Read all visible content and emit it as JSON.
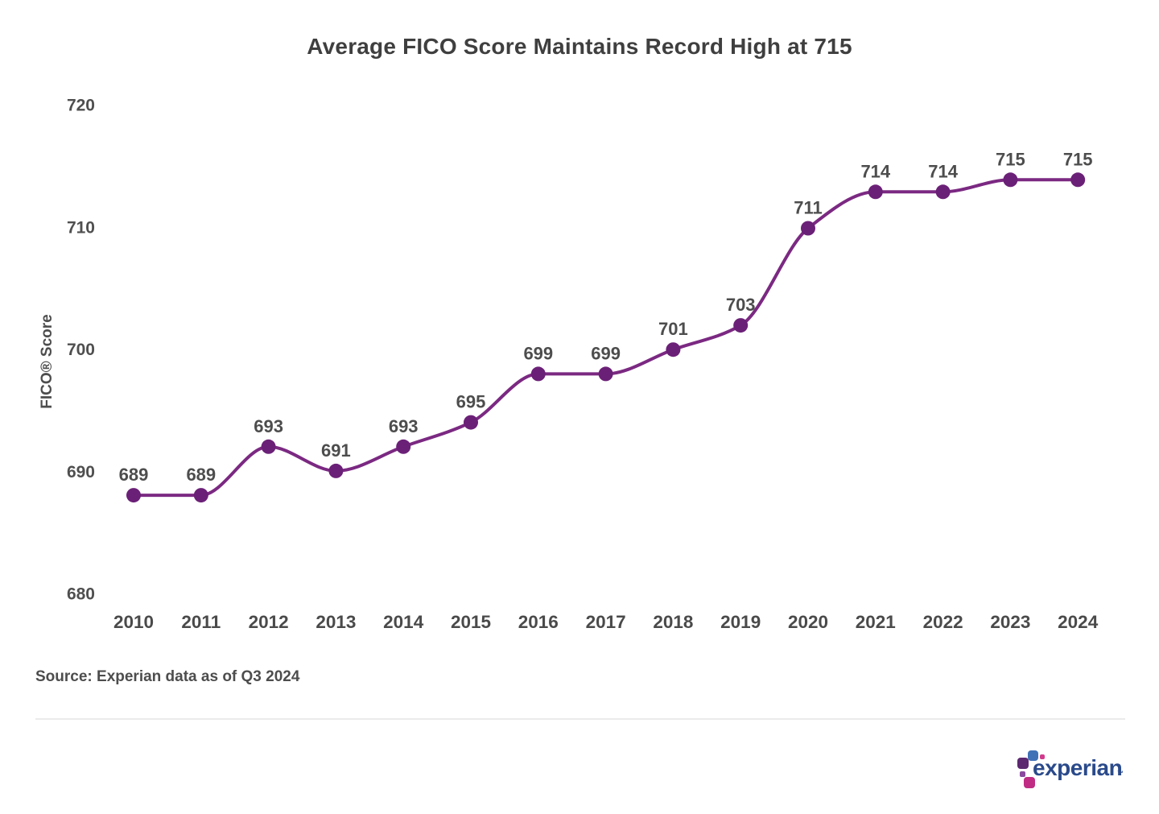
{
  "chart": {
    "title": "Average FICO Score Maintains Record High at 715",
    "source_note": "Source: Experian data as of Q3 2024"
  },
  "chart_data": {
    "type": "line",
    "title": "Average FICO Score Maintains Record High at 715",
    "x": [
      "2010",
      "2011",
      "2012",
      "2013",
      "2014",
      "2015",
      "2016",
      "2017",
      "2018",
      "2019",
      "2020",
      "2021",
      "2022",
      "2023",
      "2024"
    ],
    "values": [
      689,
      689,
      693,
      691,
      693,
      695,
      699,
      699,
      701,
      703,
      711,
      714,
      714,
      715,
      715
    ],
    "data_labels": [
      "689",
      "689",
      "693",
      "691",
      "693",
      "695",
      "699",
      "699",
      "701",
      "703",
      "711",
      "714",
      "714",
      "715",
      "715"
    ],
    "xlabel": "",
    "ylabel": "FICO® Score",
    "yticks": [
      "680",
      "690",
      "700",
      "710",
      "720"
    ],
    "ylim": [
      680,
      720
    ],
    "grid": false,
    "legend": "none",
    "axis_lines": "none",
    "colors": {
      "line": "#7B2982",
      "marker": "#6B2077",
      "data_label": "#4d4d4d",
      "tick_label": "#4f4f4f",
      "axis_title": "#4d4d4d",
      "x_label": "#4a4a4a"
    }
  },
  "footer": {
    "source_note": "Source: Experian data as of Q3 2024"
  },
  "branding": {
    "logo_text": "experian",
    "trademark": "™",
    "colors": {
      "wordmark": "#2A4A8B",
      "block_purple": "#5C2870",
      "block_blue": "#4071B7",
      "block_pink_dot": "#D23A8C",
      "block_violet": "#8A4A9E",
      "block_magenta": "#C02C84"
    }
  }
}
